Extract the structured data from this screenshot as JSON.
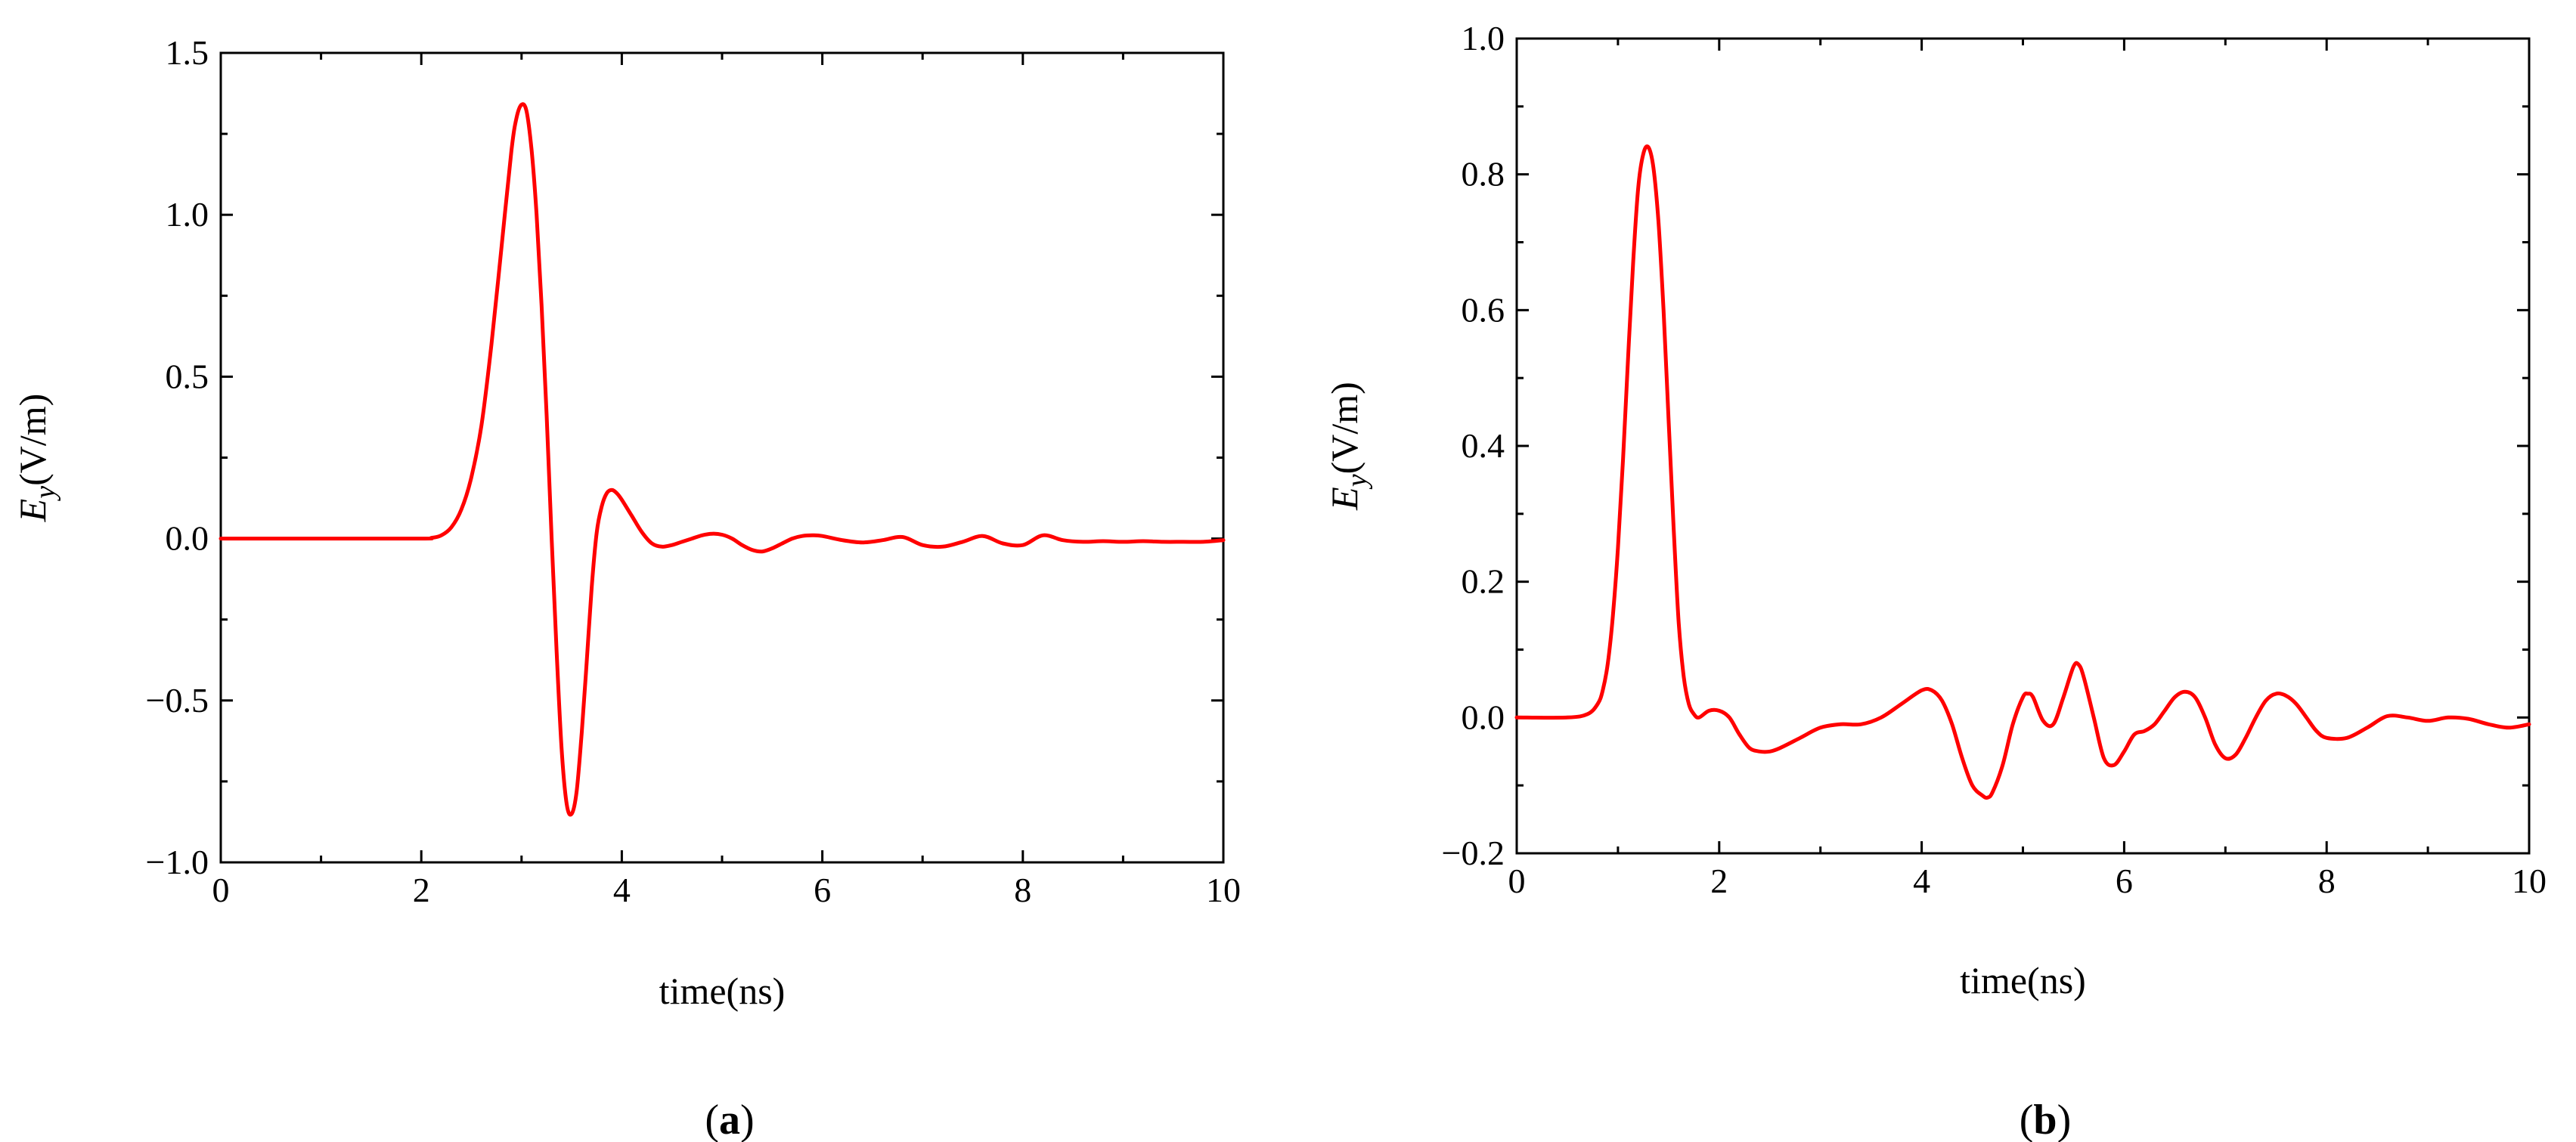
{
  "chart_data": [
    {
      "type": "line",
      "panel_label_open": "(",
      "panel_label_letter": "a",
      "panel_label_close": ")",
      "xlabel": "time(ns)",
      "ylabel_symbol": "E",
      "ylabel_subscript": "y",
      "ylabel_unit": "(V/m)",
      "xlim": [
        0,
        10
      ],
      "ylim": [
        -1.0,
        1.5
      ],
      "xticks": [
        0,
        2,
        4,
        6,
        8,
        10
      ],
      "yticks": [
        -1.0,
        -0.5,
        0.0,
        0.5,
        1.0,
        1.5
      ],
      "ytick_labels": [
        "−1.0",
        "−0.5",
        "0.0",
        "0.5",
        "1.0",
        "1.5"
      ],
      "line_color": "#ff0000",
      "series": [
        {
          "name": "Ey",
          "x": [
            0,
            1.0,
            2.0,
            2.1,
            2.2,
            2.3,
            2.4,
            2.5,
            2.6,
            2.7,
            2.8,
            2.9,
            2.95,
            3.0,
            3.05,
            3.1,
            3.15,
            3.2,
            3.25,
            3.3,
            3.35,
            3.4,
            3.45,
            3.5,
            3.55,
            3.6,
            3.65,
            3.7,
            3.75,
            3.8,
            3.85,
            3.9,
            3.95,
            4.0,
            4.1,
            4.2,
            4.3,
            4.4,
            4.5,
            4.6,
            4.7,
            4.8,
            4.9,
            5.0,
            5.1,
            5.2,
            5.3,
            5.4,
            5.5,
            5.6,
            5.7,
            5.8,
            5.9,
            6.0,
            6.2,
            6.4,
            6.6,
            6.8,
            7.0,
            7.2,
            7.4,
            7.6,
            7.8,
            8.0,
            8.2,
            8.4,
            8.6,
            8.8,
            9.0,
            9.2,
            9.4,
            9.6,
            9.8,
            10.0
          ],
          "y": [
            0.0,
            0.0,
            0.0,
            0.002,
            0.01,
            0.035,
            0.09,
            0.19,
            0.35,
            0.6,
            0.9,
            1.2,
            1.3,
            1.34,
            1.32,
            1.2,
            1.0,
            0.72,
            0.38,
            0.0,
            -0.35,
            -0.65,
            -0.82,
            -0.85,
            -0.78,
            -0.6,
            -0.38,
            -0.15,
            0.02,
            0.1,
            0.14,
            0.15,
            0.14,
            0.12,
            0.07,
            0.02,
            -0.015,
            -0.025,
            -0.02,
            -0.01,
            0.0,
            0.01,
            0.015,
            0.012,
            0.0,
            -0.02,
            -0.035,
            -0.04,
            -0.03,
            -0.015,
            0.0,
            0.008,
            0.01,
            0.008,
            -0.005,
            -0.012,
            -0.005,
            0.005,
            -0.02,
            -0.025,
            -0.01,
            0.008,
            -0.015,
            -0.02,
            0.01,
            -0.005,
            -0.01,
            -0.008,
            -0.01,
            -0.008,
            -0.01,
            -0.01,
            -0.01,
            -0.005
          ]
        }
      ]
    },
    {
      "type": "line",
      "panel_label_open": "(",
      "panel_label_letter": "b",
      "panel_label_close": ")",
      "xlabel": "time(ns)",
      "ylabel_symbol": "E",
      "ylabel_subscript": "y",
      "ylabel_unit": "(V/m)",
      "xlim": [
        0,
        10
      ],
      "ylim": [
        -0.2,
        1.0
      ],
      "xticks": [
        0,
        2,
        4,
        6,
        8,
        10
      ],
      "yticks": [
        -0.2,
        0.0,
        0.2,
        0.4,
        0.6,
        0.8,
        1.0
      ],
      "ytick_labels": [
        "−0.2",
        "0.0",
        "0.2",
        "0.4",
        "0.6",
        "0.8",
        "1.0"
      ],
      "line_color": "#ff0000",
      "series": [
        {
          "name": "Ey",
          "x": [
            0,
            0.5,
            0.7,
            0.8,
            0.85,
            0.9,
            0.95,
            1.0,
            1.05,
            1.1,
            1.15,
            1.2,
            1.25,
            1.3,
            1.35,
            1.4,
            1.45,
            1.5,
            1.55,
            1.6,
            1.65,
            1.7,
            1.75,
            1.8,
            1.9,
            2.0,
            2.1,
            2.2,
            2.3,
            2.4,
            2.5,
            2.6,
            2.8,
            3.0,
            3.2,
            3.4,
            3.6,
            3.8,
            4.0,
            4.1,
            4.2,
            4.3,
            4.4,
            4.5,
            4.6,
            4.65,
            4.7,
            4.8,
            4.9,
            5.0,
            5.05,
            5.1,
            5.2,
            5.3,
            5.4,
            5.5,
            5.55,
            5.6,
            5.7,
            5.8,
            5.9,
            6.0,
            6.1,
            6.2,
            6.3,
            6.4,
            6.5,
            6.6,
            6.7,
            6.8,
            6.9,
            7.0,
            7.1,
            7.2,
            7.3,
            7.4,
            7.5,
            7.6,
            7.7,
            7.8,
            7.9,
            8.0,
            8.2,
            8.4,
            8.6,
            8.8,
            9.0,
            9.2,
            9.4,
            9.6,
            9.8,
            10.0
          ],
          "y": [
            0.0,
            0.0,
            0.005,
            0.02,
            0.04,
            0.08,
            0.15,
            0.25,
            0.38,
            0.53,
            0.67,
            0.78,
            0.83,
            0.84,
            0.81,
            0.73,
            0.6,
            0.44,
            0.28,
            0.14,
            0.06,
            0.02,
            0.005,
            0.0,
            0.01,
            0.01,
            0.0,
            -0.025,
            -0.045,
            -0.05,
            -0.05,
            -0.045,
            -0.03,
            -0.015,
            -0.01,
            -0.01,
            0.0,
            0.02,
            0.04,
            0.04,
            0.025,
            -0.01,
            -0.06,
            -0.1,
            -0.115,
            -0.118,
            -0.11,
            -0.07,
            -0.01,
            0.03,
            0.035,
            0.03,
            -0.005,
            -0.01,
            0.03,
            0.075,
            0.078,
            0.06,
            0.0,
            -0.06,
            -0.07,
            -0.05,
            -0.025,
            -0.02,
            -0.01,
            0.01,
            0.03,
            0.038,
            0.03,
            0.0,
            -0.04,
            -0.06,
            -0.055,
            -0.03,
            0.0,
            0.025,
            0.035,
            0.032,
            0.02,
            0.0,
            -0.02,
            -0.03,
            -0.03,
            -0.015,
            0.002,
            0.0,
            -0.005,
            0.0,
            -0.002,
            -0.01,
            -0.015,
            -0.01
          ]
        }
      ]
    }
  ]
}
